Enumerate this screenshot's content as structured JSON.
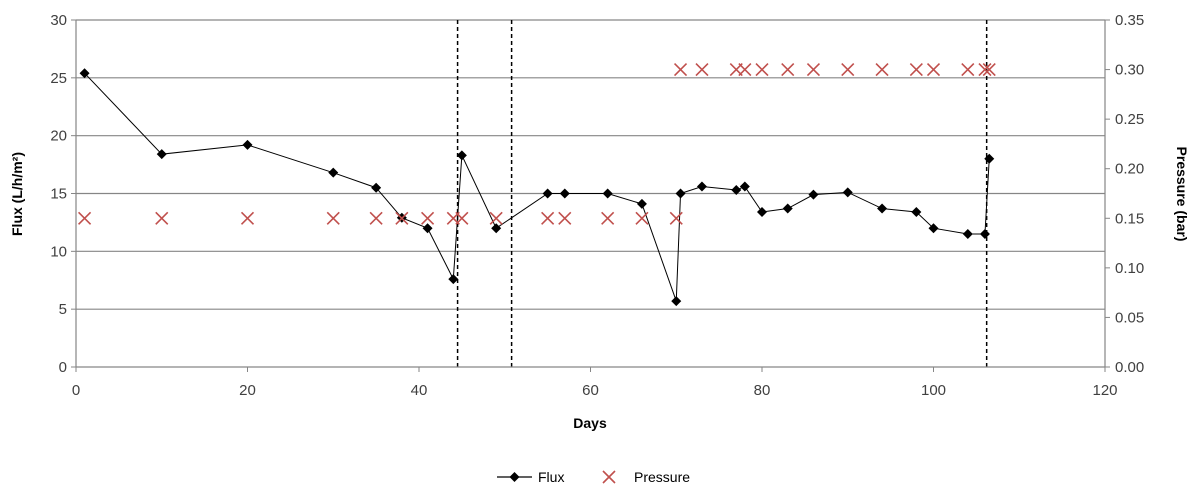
{
  "chart_data": {
    "type": "line",
    "xlabel": "Days",
    "ylabel": "Flux (L/h/m²)",
    "y2label": "Pressure (bar)",
    "xlim": [
      0,
      120
    ],
    "ylim": [
      0,
      30
    ],
    "y2lim": [
      0,
      0.35
    ],
    "xticks": [
      "0",
      "20",
      "40",
      "60",
      "80",
      "100",
      "120"
    ],
    "yticks": [
      "0",
      "5",
      "10",
      "15",
      "20",
      "25",
      "30"
    ],
    "y2ticks": [
      "0.00",
      "0.05",
      "0.10",
      "0.15",
      "0.20",
      "0.25",
      "0.30",
      "0.35"
    ],
    "grid": "horizontal",
    "legend_position": "bottom",
    "vertical_lines_x": [
      44.5,
      50.8,
      106.2
    ],
    "series": [
      {
        "name": "Flux",
        "axis": "left",
        "color": "#000000",
        "marker": "diamond",
        "x": [
          1,
          10,
          20,
          30,
          35,
          38,
          41,
          44,
          45,
          49,
          55,
          57,
          62,
          66,
          70,
          70.5,
          73,
          77,
          78,
          80,
          83,
          86,
          90,
          94,
          98,
          100,
          104,
          106,
          106.5
        ],
        "y": [
          25.4,
          18.4,
          19.2,
          16.8,
          15.5,
          12.9,
          12.0,
          7.6,
          18.3,
          12.0,
          15.0,
          15.0,
          15.0,
          14.1,
          5.7,
          15.0,
          15.6,
          15.3,
          15.6,
          13.4,
          13.7,
          14.9,
          15.1,
          13.7,
          13.4,
          12.0,
          11.5,
          11.5,
          18.0
        ]
      },
      {
        "name": "Pressure",
        "axis": "right",
        "color": "#c0504d",
        "marker": "x",
        "x": [
          1,
          10,
          20,
          30,
          35,
          38,
          41,
          44,
          45,
          49,
          55,
          57,
          62,
          66,
          70,
          70.5,
          73,
          77,
          78,
          80,
          83,
          86,
          90,
          94,
          98,
          100,
          104,
          106,
          106.5
        ],
        "y": [
          0.15,
          0.15,
          0.15,
          0.15,
          0.15,
          0.15,
          0.15,
          0.15,
          0.15,
          0.15,
          0.15,
          0.15,
          0.15,
          0.15,
          0.15,
          0.3,
          0.3,
          0.3,
          0.3,
          0.3,
          0.3,
          0.3,
          0.3,
          0.3,
          0.3,
          0.3,
          0.3,
          0.3,
          0.3
        ]
      }
    ]
  }
}
